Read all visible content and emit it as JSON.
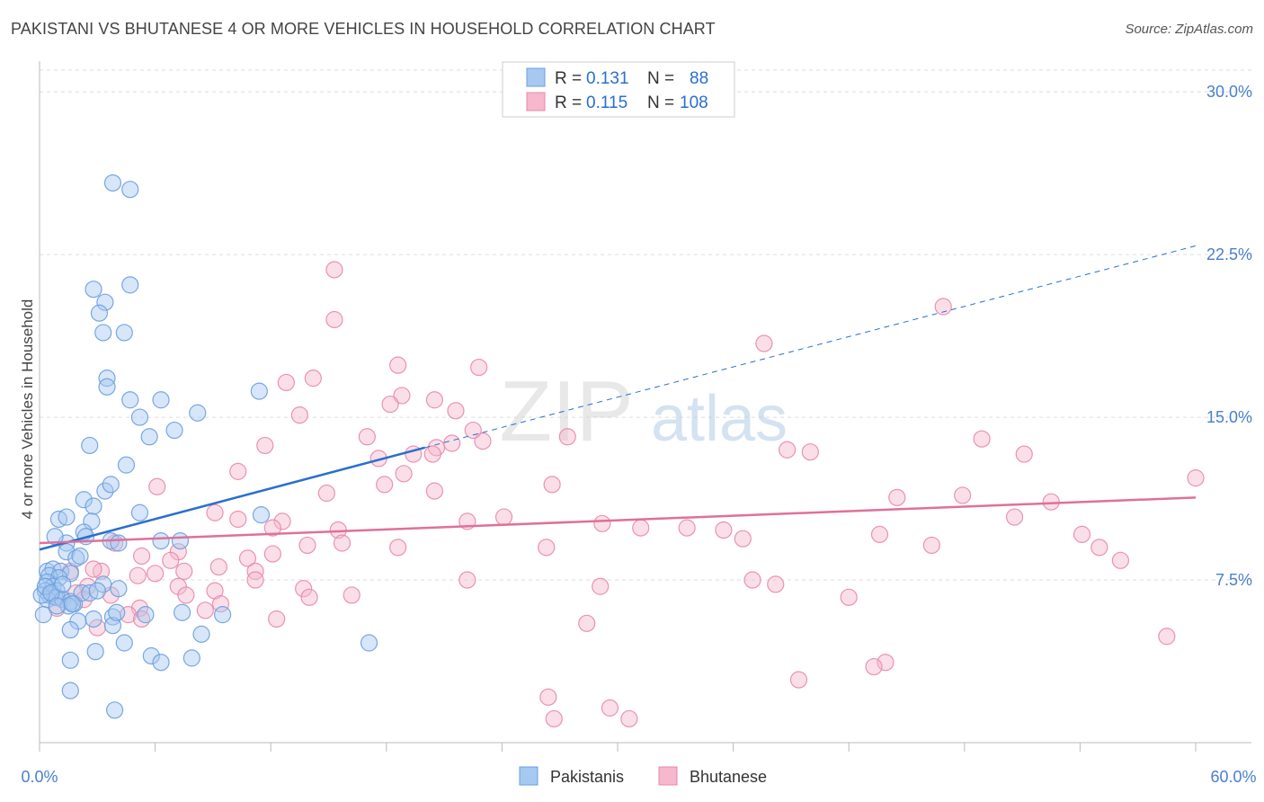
{
  "title": "PAKISTANI VS BHUTANESE 4 OR MORE VEHICLES IN HOUSEHOLD CORRELATION CHART",
  "source": "Source: ZipAtlas.com",
  "watermark": {
    "zip": "ZIP",
    "atlas": "atlas"
  },
  "colors": {
    "blue_fill": "#a7c8f0",
    "blue_stroke": "#6a9fe0",
    "blue_line": "#2a6fcf",
    "pink_fill": "#f5b8cc",
    "pink_stroke": "#e888a8",
    "pink_line": "#e0709a",
    "tick_label": "#4a7fcf",
    "grid": "#dddddd"
  },
  "legend": {
    "rows": [
      {
        "r_label": "R =",
        "r_value": "0.131",
        "n_label": "N =",
        "n_value": "88"
      },
      {
        "r_label": "R =",
        "r_value": "0.115",
        "n_label": "N =",
        "n_value": "108"
      }
    ]
  },
  "bottom_legend": [
    "Pakistanis",
    "Bhutanese"
  ],
  "chart_data": {
    "type": "scatter",
    "title": "PAKISTANI VS BHUTANESE 4 OR MORE VEHICLES IN HOUSEHOLD CORRELATION CHART",
    "xlabel": "",
    "ylabel": "4 or more Vehicles in Household",
    "xlim": [
      0,
      60
    ],
    "ylim": [
      0,
      31
    ],
    "x_tick_labels": [
      "0.0%",
      "60.0%"
    ],
    "y_ticks": [
      7.5,
      15.0,
      22.5,
      30.0
    ],
    "y_tick_labels": [
      "7.5%",
      "15.0%",
      "22.5%",
      "30.0%"
    ],
    "grid": "horizontal dashed",
    "series": [
      {
        "name": "Pakistanis",
        "r": 0.131,
        "n": 88,
        "trend": {
          "x": [
            0,
            20
          ],
          "y": [
            8.9,
            13.6
          ],
          "extended_x": [
            20,
            60
          ],
          "extended_y": [
            13.6,
            22.9
          ]
        },
        "points": [
          [
            3.8,
            25.8
          ],
          [
            4.7,
            25.5
          ],
          [
            2.8,
            20.9
          ],
          [
            3.4,
            20.3
          ],
          [
            4.7,
            21.1
          ],
          [
            3.1,
            19.8
          ],
          [
            3.3,
            18.9
          ],
          [
            4.4,
            18.9
          ],
          [
            3.5,
            16.8
          ],
          [
            3.5,
            16.4
          ],
          [
            4.7,
            15.8
          ],
          [
            6.3,
            15.8
          ],
          [
            5.2,
            15.0
          ],
          [
            8.2,
            15.2
          ],
          [
            11.4,
            16.2
          ],
          [
            5.7,
            14.1
          ],
          [
            7.0,
            14.4
          ],
          [
            2.6,
            13.7
          ],
          [
            4.5,
            12.8
          ],
          [
            1.0,
            10.3
          ],
          [
            1.4,
            10.4
          ],
          [
            2.3,
            11.2
          ],
          [
            2.8,
            10.9
          ],
          [
            3.4,
            11.6
          ],
          [
            3.7,
            11.9
          ],
          [
            2.7,
            10.2
          ],
          [
            1.4,
            9.2
          ],
          [
            0.8,
            9.5
          ],
          [
            2.3,
            9.7
          ],
          [
            2.4,
            9.5
          ],
          [
            3.7,
            9.3
          ],
          [
            4.1,
            9.2
          ],
          [
            5.2,
            10.6
          ],
          [
            6.3,
            9.3
          ],
          [
            7.3,
            9.3
          ],
          [
            11.5,
            10.5
          ],
          [
            1.4,
            8.8
          ],
          [
            1.9,
            8.5
          ],
          [
            2.1,
            8.6
          ],
          [
            0.4,
            7.9
          ],
          [
            0.7,
            8.0
          ],
          [
            1.1,
            7.9
          ],
          [
            1.6,
            7.8
          ],
          [
            0.5,
            7.7
          ],
          [
            1.0,
            7.6
          ],
          [
            0.4,
            7.4
          ],
          [
            0.7,
            7.2
          ],
          [
            0.9,
            7.0
          ],
          [
            0.3,
            7.0
          ],
          [
            0.5,
            6.8
          ],
          [
            0.8,
            6.7
          ],
          [
            0.4,
            6.6
          ],
          [
            0.9,
            6.7
          ],
          [
            1.2,
            6.6
          ],
          [
            1.6,
            6.5
          ],
          [
            1.8,
            6.4
          ],
          [
            1.5,
            6.3
          ],
          [
            2.2,
            6.9
          ],
          [
            3.3,
            7.3
          ],
          [
            4.1,
            7.1
          ],
          [
            0.1,
            6.8
          ],
          [
            0.2,
            5.9
          ],
          [
            2.0,
            5.6
          ],
          [
            2.8,
            5.7
          ],
          [
            3.8,
            5.8
          ],
          [
            3.8,
            5.4
          ],
          [
            5.5,
            5.9
          ],
          [
            7.4,
            6.0
          ],
          [
            9.5,
            5.9
          ],
          [
            1.6,
            5.2
          ],
          [
            4.4,
            4.6
          ],
          [
            8.4,
            5.0
          ],
          [
            2.9,
            4.2
          ],
          [
            5.8,
            4.0
          ],
          [
            6.3,
            3.7
          ],
          [
            7.9,
            3.9
          ],
          [
            1.6,
            3.8
          ],
          [
            1.6,
            2.4
          ],
          [
            3.9,
            1.5
          ],
          [
            17.1,
            4.6
          ],
          [
            0.3,
            7.2
          ],
          [
            0.6,
            6.9
          ],
          [
            1.2,
            7.3
          ],
          [
            2.6,
            6.9
          ],
          [
            0.9,
            6.3
          ],
          [
            1.7,
            6.4
          ],
          [
            4.0,
            6.0
          ],
          [
            3.0,
            7.0
          ]
        ]
      },
      {
        "name": "Bhutanese",
        "r": 0.115,
        "n": 108,
        "trend": {
          "x": [
            0,
            60
          ],
          "y": [
            9.2,
            11.3
          ]
        },
        "points": [
          [
            15.3,
            21.8
          ],
          [
            15.3,
            19.5
          ],
          [
            37.6,
            18.4
          ],
          [
            46.9,
            20.1
          ],
          [
            18.6,
            17.4
          ],
          [
            22.8,
            17.3
          ],
          [
            14.2,
            16.8
          ],
          [
            12.8,
            16.6
          ],
          [
            18.8,
            16.0
          ],
          [
            18.2,
            15.6
          ],
          [
            20.5,
            15.8
          ],
          [
            21.6,
            15.3
          ],
          [
            13.5,
            15.1
          ],
          [
            17.0,
            14.1
          ],
          [
            20.6,
            13.6
          ],
          [
            19.4,
            13.3
          ],
          [
            17.6,
            13.1
          ],
          [
            20.4,
            13.3
          ],
          [
            21.4,
            13.8
          ],
          [
            23.0,
            13.9
          ],
          [
            22.5,
            14.4
          ],
          [
            27.4,
            14.1
          ],
          [
            38.8,
            13.5
          ],
          [
            40.0,
            13.4
          ],
          [
            48.9,
            14.0
          ],
          [
            51.1,
            13.3
          ],
          [
            11.7,
            13.7
          ],
          [
            10.3,
            12.5
          ],
          [
            18.9,
            12.4
          ],
          [
            20.5,
            11.6
          ],
          [
            17.9,
            11.9
          ],
          [
            14.9,
            11.5
          ],
          [
            6.1,
            11.8
          ],
          [
            26.6,
            11.9
          ],
          [
            44.5,
            11.3
          ],
          [
            47.9,
            11.4
          ],
          [
            50.6,
            10.4
          ],
          [
            52.5,
            11.1
          ],
          [
            60.0,
            12.2
          ],
          [
            9.1,
            10.6
          ],
          [
            10.3,
            10.3
          ],
          [
            12.6,
            10.2
          ],
          [
            12.1,
            9.9
          ],
          [
            15.5,
            9.8
          ],
          [
            22.2,
            10.2
          ],
          [
            24.1,
            10.4
          ],
          [
            29.2,
            10.1
          ],
          [
            31.2,
            9.9
          ],
          [
            33.6,
            9.9
          ],
          [
            35.5,
            9.8
          ],
          [
            36.5,
            9.4
          ],
          [
            43.6,
            9.6
          ],
          [
            46.3,
            9.1
          ],
          [
            54.1,
            9.6
          ],
          [
            55.0,
            9.0
          ],
          [
            56.1,
            8.4
          ],
          [
            13.9,
            9.1
          ],
          [
            15.7,
            9.2
          ],
          [
            18.6,
            9.0
          ],
          [
            26.3,
            9.0
          ],
          [
            3.9,
            9.2
          ],
          [
            7.2,
            8.8
          ],
          [
            5.3,
            8.6
          ],
          [
            6.8,
            8.4
          ],
          [
            10.8,
            8.5
          ],
          [
            3.2,
            7.9
          ],
          [
            5.1,
            7.7
          ],
          [
            7.5,
            7.9
          ],
          [
            9.3,
            8.1
          ],
          [
            11.2,
            7.9
          ],
          [
            12.1,
            8.7
          ],
          [
            2.8,
            8.0
          ],
          [
            1.6,
            7.9
          ],
          [
            2.5,
            7.2
          ],
          [
            1.2,
            6.6
          ],
          [
            3.7,
            6.8
          ],
          [
            5.2,
            6.2
          ],
          [
            6.0,
            7.8
          ],
          [
            7.2,
            7.2
          ],
          [
            9.1,
            7.0
          ],
          [
            11.2,
            7.5
          ],
          [
            13.7,
            7.1
          ],
          [
            14.0,
            6.7
          ],
          [
            16.2,
            6.8
          ],
          [
            22.2,
            7.5
          ],
          [
            29.1,
            7.2
          ],
          [
            37.0,
            7.5
          ],
          [
            38.2,
            7.3
          ],
          [
            1.9,
            6.9
          ],
          [
            2.3,
            6.6
          ],
          [
            4.6,
            5.9
          ],
          [
            5.3,
            5.7
          ],
          [
            7.6,
            6.8
          ],
          [
            8.6,
            6.1
          ],
          [
            9.4,
            6.4
          ],
          [
            12.3,
            5.7
          ],
          [
            28.4,
            5.5
          ],
          [
            42.0,
            6.7
          ],
          [
            43.9,
            3.7
          ],
          [
            43.3,
            3.5
          ],
          [
            39.4,
            2.9
          ],
          [
            26.4,
            2.1
          ],
          [
            30.6,
            1.1
          ],
          [
            29.6,
            1.6
          ],
          [
            26.7,
            1.1
          ],
          [
            58.5,
            4.9
          ],
          [
            3.0,
            5.3
          ],
          [
            0.9,
            6.2
          ]
        ]
      }
    ]
  }
}
